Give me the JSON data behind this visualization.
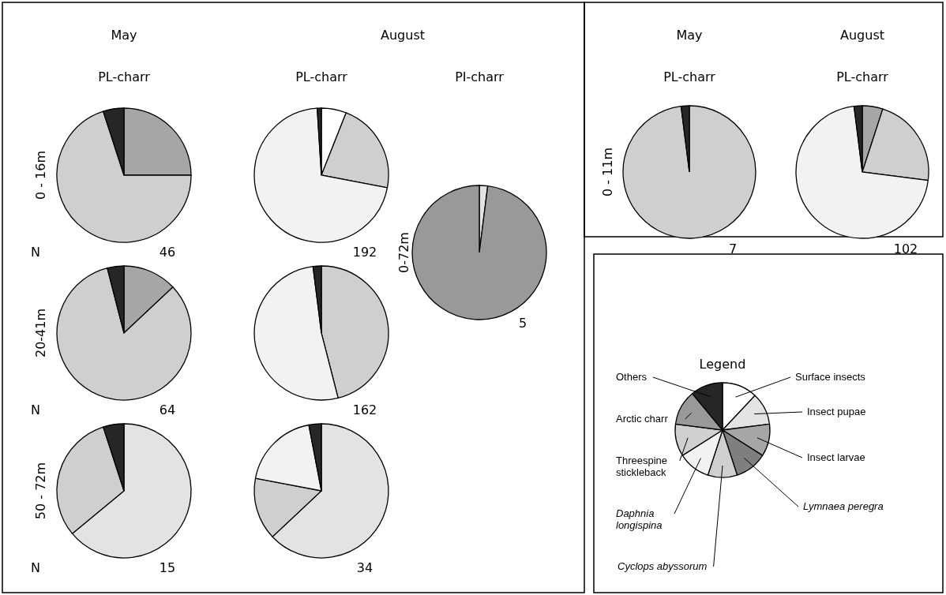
{
  "chart_data": [
    {
      "type": "pie",
      "title": "May",
      "subtitle": "PL-charr",
      "ylabel": "0 - 16m",
      "annotations": [
        "N",
        "46"
      ],
      "categories": [
        null,
        null,
        null
      ],
      "values": [
        25,
        70,
        5
      ],
      "colors": [
        "#a6a6a6",
        "#cfcfcf",
        "#262626"
      ]
    },
    {
      "type": "pie",
      "ylabel": "20-41m",
      "annotations": [
        "N",
        "64"
      ],
      "categories": [
        null,
        null,
        null
      ],
      "values": [
        13,
        83,
        4
      ],
      "colors": [
        "#a6a6a6",
        "#cfcfcf",
        "#262626"
      ]
    },
    {
      "type": "pie",
      "ylabel": "50 - 72m",
      "annotations": [
        "N",
        "15"
      ],
      "categories": [
        null,
        null,
        null
      ],
      "values": [
        64,
        31,
        5
      ],
      "colors": [
        "#e3e3e3",
        "#cfcfcf",
        "#262626"
      ]
    },
    {
      "type": "pie",
      "title": "August",
      "subtitle": "PL-charr",
      "annotations": [
        "192"
      ],
      "categories": [
        null,
        null,
        null,
        null
      ],
      "values": [
        6,
        22,
        71,
        1
      ],
      "colors": [
        "#ffffff",
        "#cfcfcf",
        "#f2f2f2",
        "#262626"
      ]
    },
    {
      "type": "pie",
      "annotations": [
        "162"
      ],
      "categories": [
        null,
        null,
        null
      ],
      "values": [
        46,
        52,
        2
      ],
      "colors": [
        "#cfcfcf",
        "#f2f2f2",
        "#262626"
      ]
    },
    {
      "type": "pie",
      "annotations": [
        "34"
      ],
      "categories": [
        null,
        null,
        null,
        null
      ],
      "values": [
        63,
        15,
        19,
        3
      ],
      "colors": [
        "#e3e3e3",
        "#cfcfcf",
        "#f2f2f2",
        "#262626"
      ]
    },
    {
      "type": "pie",
      "subtitle": "PI-charr",
      "ylabel": "0-72m",
      "annotations": [
        "5"
      ],
      "categories": [
        null,
        null
      ],
      "values": [
        2,
        98
      ],
      "colors": [
        "#e3e3e3",
        "#999999"
      ]
    },
    {
      "type": "pie",
      "title": "May",
      "subtitle": "PL-charr",
      "ylabel": "0 - 11m",
      "annotations": [
        "7"
      ],
      "categories": [
        null,
        null
      ],
      "values": [
        98,
        2
      ],
      "colors": [
        "#cfcfcf",
        "#262626"
      ]
    },
    {
      "type": "pie",
      "title": "August",
      "subtitle": "PL-charr",
      "annotations": [
        "102"
      ],
      "categories": [
        null,
        null,
        null,
        null
      ],
      "values": [
        5,
        22,
        71,
        2
      ],
      "colors": [
        "#a6a6a6",
        "#cfcfcf",
        "#f2f2f2",
        "#262626"
      ]
    },
    {
      "type": "pie",
      "title": "Legend",
      "categories": [
        "Surface insects",
        "Insect pupae",
        "Insect larvae",
        "Lymnaea peregra",
        "Cyclops abyssorum",
        "Daphnia longispina",
        "Threespine stickleback",
        "Arctic charr",
        "Others"
      ],
      "values": [
        12,
        11,
        11,
        11,
        10,
        11,
        11,
        12,
        11
      ],
      "colors": [
        "#ffffff",
        "#e3e3e3",
        "#a6a6a6",
        "#7f7f7f",
        "#cfcfcf",
        "#f2f2f2",
        "#d0d0d0",
        "#999999",
        "#262626"
      ]
    }
  ]
}
